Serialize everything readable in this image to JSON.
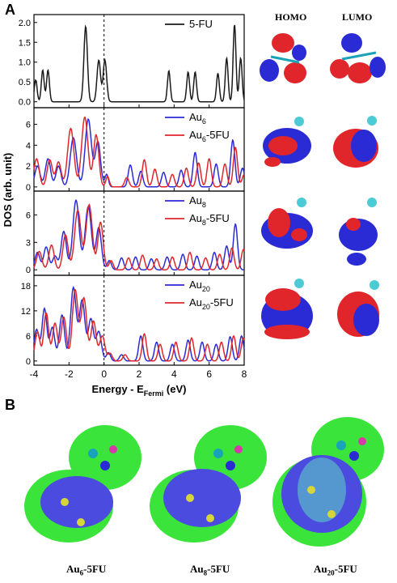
{
  "panel_a_label": "A",
  "panel_b_label": "B",
  "orbital_headers": {
    "homo": "HOMO",
    "lumo": "LUMO"
  },
  "colors": {
    "black": "#1a1a1a",
    "blue": "#2b2bd6",
    "red": "#e0262b",
    "green": "#3ae43a"
  },
  "chart_data": {
    "type": "line",
    "xlabel": "Energy - E_Fermi (eV)",
    "xlabel_parts": {
      "main": "Energy - E",
      "sub": "Fermi",
      "unit": " (eV)"
    },
    "ylabel": "DOS (arb. unit)",
    "xlim": [
      -4,
      8
    ],
    "xticks": [
      -4,
      -2,
      0,
      2,
      4,
      6,
      8
    ],
    "fermi_line_x": 0,
    "panels": [
      {
        "yticks": [
          "0.0",
          "0.5",
          "1.0",
          "1.5",
          "2.0"
        ],
        "ylim": [
          -0.15,
          2.2
        ],
        "legend": [
          {
            "base": "5-FU",
            "sub": "",
            "tail": "",
            "color": "#1a1a1a"
          }
        ],
        "series": [
          {
            "name": "5-FU",
            "color": "#1a1a1a",
            "peaks": [
              [
                -3.9,
                0.55,
                0.08
              ],
              [
                -3.5,
                0.8,
                0.08
              ],
              [
                -3.2,
                0.8,
                0.08
              ],
              [
                -1.05,
                1.9,
                0.1
              ],
              [
                -0.3,
                1.05,
                0.1
              ],
              [
                0.05,
                1.05,
                0.1
              ],
              [
                3.7,
                0.78,
                0.08
              ],
              [
                4.8,
                0.75,
                0.08
              ],
              [
                5.2,
                0.75,
                0.08
              ],
              [
                6.5,
                0.72,
                0.08
              ],
              [
                7.0,
                1.1,
                0.08
              ],
              [
                7.45,
                1.95,
                0.08
              ],
              [
                7.8,
                1.1,
                0.08
              ]
            ]
          }
        ]
      },
      {
        "yticks": [
          "0",
          "2",
          "4",
          "6"
        ],
        "ylim": [
          -0.4,
          7.6
        ],
        "legend": [
          {
            "base": "Au",
            "sub": "6",
            "tail": "",
            "color": "#2b2bd6"
          },
          {
            "base": "Au",
            "sub": "6",
            "tail": "-5FU",
            "color": "#e0262b"
          }
        ],
        "series": [
          {
            "name": "Au6",
            "color": "#2b2bd6",
            "peaks": [
              [
                -3.8,
                2.0,
                0.15
              ],
              [
                -3.2,
                2.7,
                0.15
              ],
              [
                -2.6,
                2.0,
                0.15
              ],
              [
                -1.75,
                4.7,
                0.18
              ],
              [
                -0.9,
                6.5,
                0.18
              ],
              [
                -0.35,
                4.3,
                0.15
              ],
              [
                0.15,
                1.2,
                0.1
              ],
              [
                1.5,
                2.1,
                0.12
              ],
              [
                2.1,
                1.5,
                0.12
              ],
              [
                3.4,
                1.4,
                0.12
              ],
              [
                4.4,
                1.6,
                0.12
              ],
              [
                5.2,
                3.3,
                0.12
              ],
              [
                6.4,
                2.2,
                0.12
              ],
              [
                7.35,
                4.5,
                0.12
              ],
              [
                7.9,
                1.8,
                0.12
              ]
            ]
          },
          {
            "name": "Au6-5FU",
            "color": "#e0262b",
            "peaks": [
              [
                -3.85,
                2.7,
                0.15
              ],
              [
                -3.1,
                2.6,
                0.15
              ],
              [
                -2.6,
                2.4,
                0.15
              ],
              [
                -1.9,
                5.6,
                0.18
              ],
              [
                -1.1,
                6.7,
                0.18
              ],
              [
                -0.45,
                5.0,
                0.15
              ],
              [
                0.2,
                1.0,
                0.1
              ],
              [
                1.3,
                0.9,
                0.12
              ],
              [
                2.3,
                2.6,
                0.12
              ],
              [
                2.9,
                1.7,
                0.12
              ],
              [
                3.9,
                1.2,
                0.12
              ],
              [
                4.7,
                1.8,
                0.12
              ],
              [
                5.4,
                2.3,
                0.12
              ],
              [
                6.0,
                2.7,
                0.12
              ],
              [
                6.9,
                2.2,
                0.12
              ],
              [
                7.5,
                3.8,
                0.12
              ],
              [
                8.0,
                1.2,
                0.12
              ]
            ]
          }
        ]
      },
      {
        "yticks": [
          "0",
          "3",
          "6"
        ],
        "ylim": [
          -0.6,
          8.6
        ],
        "legend": [
          {
            "base": "Au",
            "sub": "8",
            "tail": "",
            "color": "#2b2bd6"
          },
          {
            "base": "Au",
            "sub": "8",
            "tail": "-5FU",
            "color": "#e0262b"
          }
        ],
        "series": [
          {
            "name": "Au8",
            "color": "#2b2bd6",
            "peaks": [
              [
                -3.8,
                1.9,
                0.14
              ],
              [
                -3.3,
                2.5,
                0.14
              ],
              [
                -2.8,
                1.5,
                0.14
              ],
              [
                -2.3,
                4.2,
                0.15
              ],
              [
                -1.6,
                7.6,
                0.18
              ],
              [
                -0.9,
                6.9,
                0.18
              ],
              [
                -0.3,
                4.6,
                0.15
              ],
              [
                0.3,
                1.0,
                0.12
              ],
              [
                1.0,
                1.3,
                0.12
              ],
              [
                1.8,
                1.4,
                0.12
              ],
              [
                2.7,
                1.2,
                0.12
              ],
              [
                3.6,
                1.4,
                0.12
              ],
              [
                4.5,
                1.7,
                0.12
              ],
              [
                5.3,
                1.5,
                0.12
              ],
              [
                6.3,
                1.9,
                0.12
              ],
              [
                7.0,
                2.6,
                0.12
              ],
              [
                7.5,
                5.0,
                0.12
              ]
            ]
          },
          {
            "name": "Au8-5FU",
            "color": "#e0262b",
            "peaks": [
              [
                -3.7,
                2.0,
                0.15
              ],
              [
                -3.0,
                2.7,
                0.15
              ],
              [
                -2.2,
                3.8,
                0.15
              ],
              [
                -1.5,
                6.5,
                0.18
              ],
              [
                -0.85,
                7.1,
                0.18
              ],
              [
                -0.2,
                5.2,
                0.15
              ],
              [
                0.4,
                1.0,
                0.12
              ],
              [
                1.4,
                1.3,
                0.12
              ],
              [
                2.2,
                1.6,
                0.12
              ],
              [
                3.0,
                1.2,
                0.12
              ],
              [
                3.9,
                1.4,
                0.12
              ],
              [
                4.9,
                1.9,
                0.12
              ],
              [
                5.8,
                1.3,
                0.12
              ],
              [
                6.6,
                1.7,
                0.12
              ],
              [
                7.3,
                2.4,
                0.12
              ],
              [
                7.95,
                2.2,
                0.12
              ]
            ]
          }
        ]
      },
      {
        "yticks": [
          "0",
          "6",
          "12",
          "18"
        ],
        "ylim": [
          -1.0,
          20.5
        ],
        "legend": [
          {
            "base": "Au",
            "sub": "20",
            "tail": "",
            "color": "#2b2bd6"
          },
          {
            "base": "Au",
            "sub": "20",
            "tail": "-5FU",
            "color": "#e0262b"
          }
        ],
        "series": [
          {
            "name": "Au20",
            "color": "#2b2bd6",
            "peaks": [
              [
                -3.85,
                7.5,
                0.14
              ],
              [
                -3.4,
                12.5,
                0.14
              ],
              [
                -2.95,
                8.0,
                0.14
              ],
              [
                -2.4,
                11.0,
                0.15
              ],
              [
                -1.75,
                17.5,
                0.16
              ],
              [
                -1.25,
                14.5,
                0.16
              ],
              [
                -0.75,
                10.0,
                0.15
              ],
              [
                -0.3,
                7.0,
                0.15
              ],
              [
                0.25,
                2.0,
                0.12
              ],
              [
                1.0,
                1.5,
                0.12
              ],
              [
                2.1,
                6.0,
                0.12
              ],
              [
                3.0,
                4.5,
                0.12
              ],
              [
                3.9,
                4.0,
                0.12
              ],
              [
                4.8,
                5.0,
                0.12
              ],
              [
                5.6,
                4.5,
                0.12
              ],
              [
                6.4,
                4.0,
                0.12
              ],
              [
                7.2,
                5.8,
                0.12
              ],
              [
                7.85,
                6.0,
                0.12
              ]
            ]
          },
          {
            "name": "Au20-5FU",
            "color": "#e0262b",
            "peaks": [
              [
                -3.8,
                7.0,
                0.14
              ],
              [
                -3.3,
                11.5,
                0.14
              ],
              [
                -2.8,
                9.0,
                0.14
              ],
              [
                -2.3,
                10.5,
                0.15
              ],
              [
                -1.65,
                17.0,
                0.16
              ],
              [
                -1.15,
                15.0,
                0.16
              ],
              [
                -0.6,
                9.5,
                0.15
              ],
              [
                -0.1,
                6.0,
                0.15
              ],
              [
                0.35,
                1.8,
                0.12
              ],
              [
                1.2,
                1.5,
                0.12
              ],
              [
                2.3,
                6.5,
                0.12
              ],
              [
                3.2,
                4.0,
                0.12
              ],
              [
                4.1,
                4.5,
                0.12
              ],
              [
                5.0,
                5.5,
                0.12
              ],
              [
                5.9,
                4.0,
                0.12
              ],
              [
                6.7,
                4.5,
                0.12
              ],
              [
                7.4,
                6.0,
                0.12
              ],
              [
                7.95,
                5.5,
                0.12
              ]
            ]
          }
        ]
      }
    ]
  },
  "captions": [
    {
      "base": "Au",
      "sub": "6",
      "tail": "-5FU"
    },
    {
      "base": "Au",
      "sub": "8",
      "tail": "-5FU"
    },
    {
      "base": "Au",
      "sub": "20",
      "tail": "-5FU"
    }
  ]
}
